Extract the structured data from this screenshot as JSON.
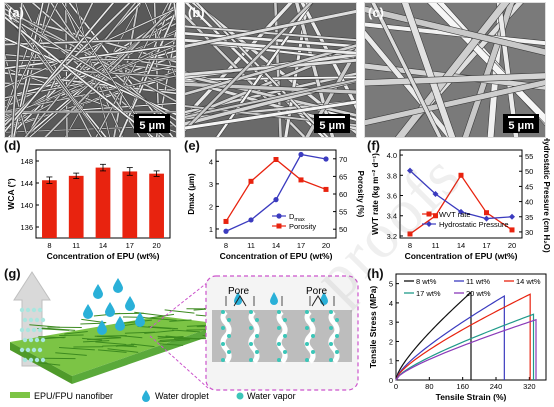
{
  "panels": {
    "a": "(a)",
    "b": "(b)",
    "c": "(c)",
    "d": "(d)",
    "e": "(e)",
    "f": "(f)",
    "g": "(g)",
    "h": "(h)"
  },
  "sem": {
    "scale": "5 μm"
  },
  "watermark": "proofs",
  "chart_data": [
    {
      "id": "d",
      "type": "bar",
      "categories": [
        "8",
        "11",
        "14",
        "17",
        "20"
      ],
      "values": [
        144.5,
        145.3,
        146.8,
        146.1,
        145.7
      ],
      "errors": [
        0.6,
        0.5,
        0.6,
        0.7,
        0.5
      ],
      "xlabel": "Concentration of EPU (wt%)",
      "ylabel": "WCA (°)",
      "yticks": [
        "136",
        "140",
        "144",
        "148"
      ],
      "ylim": [
        134,
        150
      ],
      "color": "#e8230f"
    },
    {
      "id": "e",
      "type": "line",
      "categories": [
        "8",
        "11",
        "14",
        "17",
        "20"
      ],
      "xlabel": "Concentration of EPU (wt%)",
      "ylabel_left": "Dmax (μm)",
      "ylabel_right": "Porosity (%)",
      "yticks_left": [
        "1",
        "2",
        "3",
        "4"
      ],
      "yticks_right": [
        "50",
        "55",
        "60",
        "65",
        "70"
      ],
      "ylim_left": [
        0.6,
        4.5
      ],
      "ylim_right": [
        47.5,
        72.5
      ],
      "series": [
        {
          "name": "Dmax",
          "axis": "left",
          "color": "#3b3bbf",
          "marker": "circle",
          "values": [
            0.9,
            1.4,
            2.3,
            4.3,
            4.1
          ]
        },
        {
          "name": "Porosity",
          "axis": "right",
          "color": "#e8230f",
          "marker": "square",
          "values": [
            52.2,
            63.6,
            69.8,
            64.0,
            61.3
          ]
        }
      ],
      "legend": {
        "dmax": "D",
        "dmax_sub": "max",
        "porosity": "Porosity"
      }
    },
    {
      "id": "f",
      "type": "line",
      "categories": [
        "8",
        "11",
        "14",
        "17",
        "20"
      ],
      "xlabel": "Concentration of EPU (wt%)",
      "ylabel_left": "WVT rate (kg m⁻² d⁻¹)",
      "ylabel_right": "Hydrostatic Pressure (cm H₂O)",
      "yticks_left": [
        "3.2",
        "3.4",
        "3.6",
        "3.8",
        "4.0"
      ],
      "yticks_right": [
        "30",
        "35",
        "40",
        "45",
        "50",
        "55"
      ],
      "ylim_left": [
        3.18,
        4.05
      ],
      "ylim_right": [
        28,
        57
      ],
      "series": [
        {
          "name": "WVT rate",
          "axis": "left",
          "color": "#e8230f",
          "marker": "square",
          "values": [
            3.22,
            3.4,
            3.8,
            3.43,
            3.26
          ]
        },
        {
          "name": "Hydrostatic Pressure",
          "axis": "right",
          "color": "#3b3bbf",
          "marker": "diamond",
          "values": [
            50.2,
            42.5,
            36.6,
            34.4,
            35.0
          ]
        }
      ]
    },
    {
      "id": "h",
      "type": "line",
      "xlabel": "Tensile Strain (%)",
      "ylabel": "Tensile Stress (MPa)",
      "xticks": [
        "0",
        "80",
        "160",
        "240",
        "320"
      ],
      "yticks": [
        "0",
        "1",
        "2",
        "3",
        "4",
        "5"
      ],
      "xlim": [
        0,
        360
      ],
      "ylim": [
        0,
        5.5
      ],
      "legend": [
        "8 wt%",
        "11 wt%",
        "14 wt%",
        "17 wt%",
        "20 wt%"
      ],
      "series": [
        {
          "name": "8 wt%",
          "color": "#111111",
          "strain_max": 180,
          "stress_max": 4.8
        },
        {
          "name": "11 wt%",
          "color": "#3b3bbf",
          "strain_max": 260,
          "stress_max": 4.6
        },
        {
          "name": "14 wt%",
          "color": "#e8230f",
          "strain_max": 322,
          "stress_max": 4.7
        },
        {
          "name": "17 wt%",
          "color": "#1f9a8a",
          "strain_max": 330,
          "stress_max": 3.6
        },
        {
          "name": "20 wt%",
          "color": "#8a3ab9",
          "strain_max": 336,
          "stress_max": 3.3
        }
      ]
    }
  ],
  "schematic": {
    "pore_left": "Pore",
    "pore_right": "Pore",
    "legend_fiber": "EPU/FPU nanofiber",
    "legend_droplet": "Water droplet",
    "legend_vapor": "Water vapor"
  }
}
